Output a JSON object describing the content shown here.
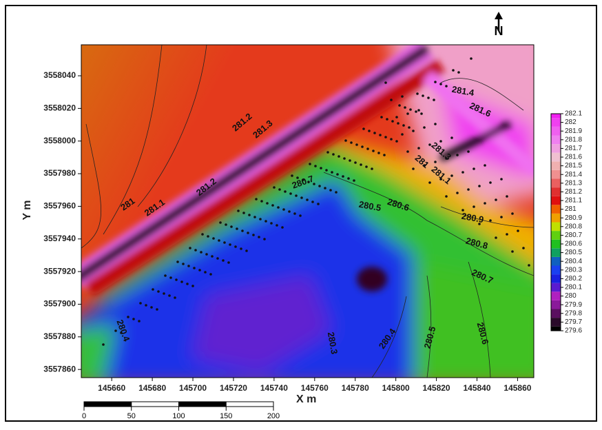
{
  "chart_data": {
    "type": "contour",
    "x_label": "X m",
    "y_label": "Y m",
    "xlim": [
      145645,
      145868
    ],
    "ylim": [
      3557855,
      3558059
    ],
    "xticks": [
      145660,
      145680,
      145700,
      145720,
      145740,
      145760,
      145780,
      145800,
      145820,
      145840,
      145860
    ],
    "yticks": [
      3558040,
      3558020,
      3558000,
      3557980,
      3557960,
      3557940,
      3557920,
      3557900,
      3557880,
      3557860
    ],
    "colorbar": {
      "ticks": [
        279.6,
        279.7,
        279.8,
        279.9,
        280,
        280.1,
        280.2,
        280.3,
        280.4,
        280.5,
        280.6,
        280.7,
        280.8,
        280.9,
        281,
        281.1,
        281.2,
        281.3,
        281.4,
        281.5,
        281.6,
        281.7,
        281.8,
        281.9,
        282,
        282.1
      ],
      "colors": [
        "#000000",
        "#2a0a2a",
        "#5a1060",
        "#8a1a9a",
        "#b020c0",
        "#5a1ad0",
        "#1a20e0",
        "#1a40f0",
        "#1060c0",
        "#10a060",
        "#20c020",
        "#60d010",
        "#c0e000",
        "#f0a000",
        "#f06000",
        "#e01010",
        "#e03030",
        "#ea6060",
        "#f09090",
        "#f0b0b0",
        "#f0c0d0",
        "#f0a0e0",
        "#f080f0",
        "#f060f0",
        "#f040f0",
        "#f020f0"
      ]
    },
    "contour_labels": [
      "281.2",
      "281.3",
      "281",
      "281.1",
      "281.2",
      "281.4",
      "281.6",
      "281.3",
      "281.1",
      "281",
      "280.7",
      "280.5",
      "280.6",
      "280.9",
      "280.8",
      "280.7",
      "280.4",
      "280.3",
      "280.4",
      "280.5",
      "280.6"
    ],
    "scale_bar": [
      0,
      50,
      100,
      150,
      200
    ],
    "north_label": "N"
  }
}
